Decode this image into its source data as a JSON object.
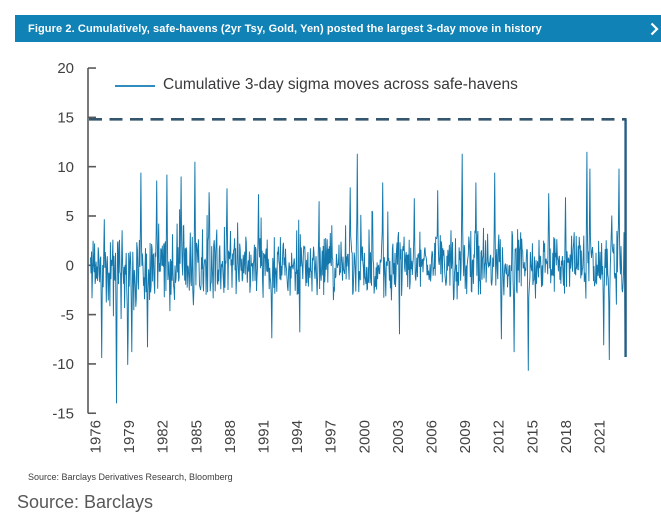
{
  "header": {
    "title": "Figure 2. Cumulatively, safe-havens (2yr Tsy, Gold, Yen) posted the largest 3-day move in history",
    "next_icon": "chevron-right"
  },
  "legend": {
    "label": "Cumulative 3-day sigma moves across safe-havens"
  },
  "footer": {
    "source_note": "Source: Barclays Derivatives Research, Bloomberg",
    "page_source": "Source: Barclays"
  },
  "colors": {
    "header_bg": "#1082b6",
    "header_text": "#ffffff",
    "series": "#1478ad",
    "legend_swatch": "#2f8dbd",
    "dashed_reference": "#33566e",
    "record_move": "#265e83",
    "axis": "#58595b",
    "tick_text": "#414042"
  },
  "chart_data": {
    "type": "line",
    "series": [
      {
        "name": "Cumulative 3-day sigma moves across safe-havens"
      }
    ],
    "title": "",
    "xlabel": "",
    "ylabel": "",
    "x_start": 1975.6,
    "x_end": 2023.4,
    "xticks": [
      1976,
      1979,
      1982,
      1985,
      1988,
      1991,
      1994,
      1997,
      2000,
      2003,
      2006,
      2009,
      2012,
      2015,
      2018,
      2021
    ],
    "ylim": [
      -15,
      20
    ],
    "yticks": [
      20,
      15,
      10,
      5,
      0,
      -5,
      -10,
      -15
    ],
    "grid": false,
    "legend_position": "top-inside",
    "reference_line": {
      "value": 14.8,
      "style": "dashed"
    },
    "record_point": {
      "x": 2023.35,
      "value": 14.8,
      "prev_value": -9.3
    },
    "typical_band": [
      -4,
      4
    ],
    "points_per_year": 22,
    "seed": 11,
    "volatility_envelope": [
      {
        "from": 1975.6,
        "to": 1987.0,
        "scale": 1.25
      },
      {
        "from": 1987.0,
        "to": 1996.0,
        "scale": 1.0
      },
      {
        "from": 1996.0,
        "to": 2003.0,
        "scale": 1.1
      },
      {
        "from": 2003.0,
        "to": 2007.0,
        "scale": 0.85
      },
      {
        "from": 2007.0,
        "to": 2012.0,
        "scale": 1.1
      },
      {
        "from": 2012.0,
        "to": 2019.0,
        "scale": 0.95
      },
      {
        "from": 2019.0,
        "to": 2023.4,
        "scale": 1.15
      }
    ],
    "key_spikes": [
      {
        "x": 1976.6,
        "y": -9.4
      },
      {
        "x": 1977.9,
        "y": -14.0
      },
      {
        "x": 1978.9,
        "y": -10.1
      },
      {
        "x": 1979.3,
        "y": -8.8
      },
      {
        "x": 1980.1,
        "y": 9.4
      },
      {
        "x": 1980.7,
        "y": -8.3
      },
      {
        "x": 1981.5,
        "y": 8.6
      },
      {
        "x": 1982.4,
        "y": 9.2
      },
      {
        "x": 1983.7,
        "y": 9.0
      },
      {
        "x": 1984.9,
        "y": 10.5
      },
      {
        "x": 1986.2,
        "y": 7.4
      },
      {
        "x": 1987.8,
        "y": 7.8
      },
      {
        "x": 1990.6,
        "y": 7.2
      },
      {
        "x": 1991.8,
        "y": -7.4
      },
      {
        "x": 1994.3,
        "y": -6.8
      },
      {
        "x": 1996.0,
        "y": 6.5
      },
      {
        "x": 1998.8,
        "y": 7.9
      },
      {
        "x": 1999.4,
        "y": 11.3
      },
      {
        "x": 2001.7,
        "y": 8.4
      },
      {
        "x": 2003.2,
        "y": -7.0
      },
      {
        "x": 2004.5,
        "y": 6.8
      },
      {
        "x": 2006.6,
        "y": 7.6
      },
      {
        "x": 2008.8,
        "y": 11.3
      },
      {
        "x": 2010.0,
        "y": 8.4
      },
      {
        "x": 2011.7,
        "y": 9.4
      },
      {
        "x": 2012.3,
        "y": -7.5
      },
      {
        "x": 2013.4,
        "y": -8.8
      },
      {
        "x": 2014.7,
        "y": -10.7
      },
      {
        "x": 2016.5,
        "y": 7.3
      },
      {
        "x": 2018.0,
        "y": 6.9
      },
      {
        "x": 2019.9,
        "y": 11.5
      },
      {
        "x": 2020.2,
        "y": 9.8
      },
      {
        "x": 2021.4,
        "y": -8.1
      },
      {
        "x": 2021.9,
        "y": -9.6
      },
      {
        "x": 2022.8,
        "y": 9.8
      }
    ]
  }
}
